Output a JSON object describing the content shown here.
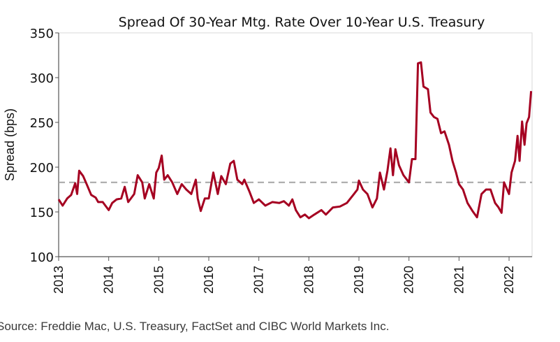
{
  "chart_data": {
    "type": "line",
    "title": "Spread Of 30-Year Mtg. Rate Over 10-Year U.S. Treasury",
    "xlabel": "",
    "ylabel": "Spread (bps)",
    "xlim": [
      2013,
      2022.46
    ],
    "ylim": [
      100,
      350
    ],
    "yticks": [
      100,
      150,
      200,
      250,
      300,
      350
    ],
    "xticks": [
      2013,
      2014,
      2015,
      2016,
      2017,
      2018,
      2019,
      2020,
      2021,
      2022
    ],
    "grid": false,
    "legend": "none",
    "reference_line": {
      "y": 183,
      "style": "dashed",
      "color": "#A6A6A6"
    },
    "series": [
      {
        "color": "#A50021",
        "x": [
          2013.0,
          2013.08,
          2013.17,
          2013.25,
          2013.33,
          2013.37,
          2013.41,
          2013.49,
          2013.56,
          2013.65,
          2013.74,
          2013.79,
          2013.88,
          2014.0,
          2014.07,
          2014.16,
          2014.25,
          2014.32,
          2014.39,
          2014.51,
          2014.58,
          2014.67,
          2014.72,
          2014.81,
          2014.9,
          2014.95,
          2015.0,
          2015.06,
          2015.11,
          2015.18,
          2015.27,
          2015.37,
          2015.46,
          2015.55,
          2015.65,
          2015.74,
          2015.78,
          2015.84,
          2015.92,
          2016.0,
          2016.09,
          2016.18,
          2016.25,
          2016.34,
          2016.43,
          2016.5,
          2016.57,
          2016.67,
          2016.71,
          2016.81,
          2016.9,
          2017.0,
          2017.13,
          2017.27,
          2017.41,
          2017.5,
          2017.6,
          2017.67,
          2017.74,
          2017.83,
          2017.92,
          2018.0,
          2018.11,
          2018.25,
          2018.34,
          2018.48,
          2018.62,
          2018.76,
          2018.9,
          2018.97,
          2019.0,
          2019.08,
          2019.17,
          2019.27,
          2019.36,
          2019.42,
          2019.5,
          2019.57,
          2019.63,
          2019.68,
          2019.73,
          2019.8,
          2019.89,
          2020.0,
          2020.06,
          2020.13,
          2020.18,
          2020.24,
          2020.29,
          2020.38,
          2020.43,
          2020.5,
          2020.57,
          2020.64,
          2020.71,
          2020.8,
          2020.87,
          2020.94,
          2021.0,
          2021.08,
          2021.17,
          2021.27,
          2021.36,
          2021.45,
          2021.54,
          2021.63,
          2021.72,
          2021.79,
          2021.85,
          2021.9,
          2022.0,
          2022.05,
          2022.12,
          2022.17,
          2022.21,
          2022.26,
          2022.31,
          2022.35,
          2022.4,
          2022.44
        ],
        "y": [
          164,
          157,
          165,
          169,
          182,
          170,
          196,
          190,
          181,
          169,
          166,
          161,
          161,
          152,
          160,
          164,
          165,
          178,
          161,
          170,
          191,
          183,
          165,
          181,
          165,
          194,
          199,
          213,
          186,
          191,
          183,
          170,
          181,
          175,
          170,
          186,
          165,
          151,
          165,
          165,
          194,
          170,
          190,
          181,
          204,
          207,
          186,
          181,
          186,
          173,
          160,
          164,
          157,
          161,
          160,
          162,
          157,
          164,
          152,
          144,
          147,
          143,
          147,
          152,
          147,
          155,
          156,
          160,
          170,
          175,
          185,
          175,
          170,
          155,
          165,
          194,
          175,
          196,
          221,
          191,
          220,
          202,
          191,
          183,
          209,
          209,
          316,
          317,
          290,
          287,
          261,
          256,
          254,
          238,
          240,
          225,
          207,
          194,
          181,
          175,
          160,
          151,
          144,
          170,
          175,
          175,
          160,
          155,
          149,
          183,
          170,
          194,
          207,
          235,
          207,
          251,
          225,
          249,
          256,
          285
        ]
      }
    ]
  },
  "source": "Source: Freddie Mac, U.S. Treasury, FactSet and CIBC World Markets Inc."
}
